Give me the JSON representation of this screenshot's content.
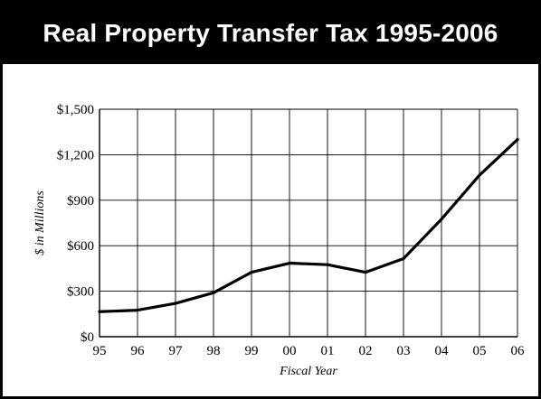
{
  "title": "Real Property Transfer Tax 1995-2006",
  "colors": {
    "title_bar": "#000000",
    "title_text": "#ffffff",
    "line": "#000000",
    "grid": "#000000"
  },
  "chart_data": {
    "type": "line",
    "title": "Real Property Transfer Tax 1995-2006",
    "xlabel": "Fiscal Year",
    "ylabel": "$ in Millions",
    "categories": [
      "95",
      "96",
      "97",
      "98",
      "99",
      "00",
      "01",
      "02",
      "03",
      "04",
      "05",
      "06"
    ],
    "series": [
      {
        "values": [
          165,
          175,
          220,
          290,
          425,
          485,
          475,
          425,
          515,
          775,
          1065,
          1300
        ]
      }
    ],
    "ylim": [
      0,
      1500
    ],
    "y_ticks": [
      0,
      300,
      600,
      900,
      1200,
      1500
    ],
    "y_tick_labels": [
      "$0",
      "$300",
      "$600",
      "$900",
      "$1,200",
      "$1,500"
    ],
    "grid": true,
    "legend": false
  }
}
